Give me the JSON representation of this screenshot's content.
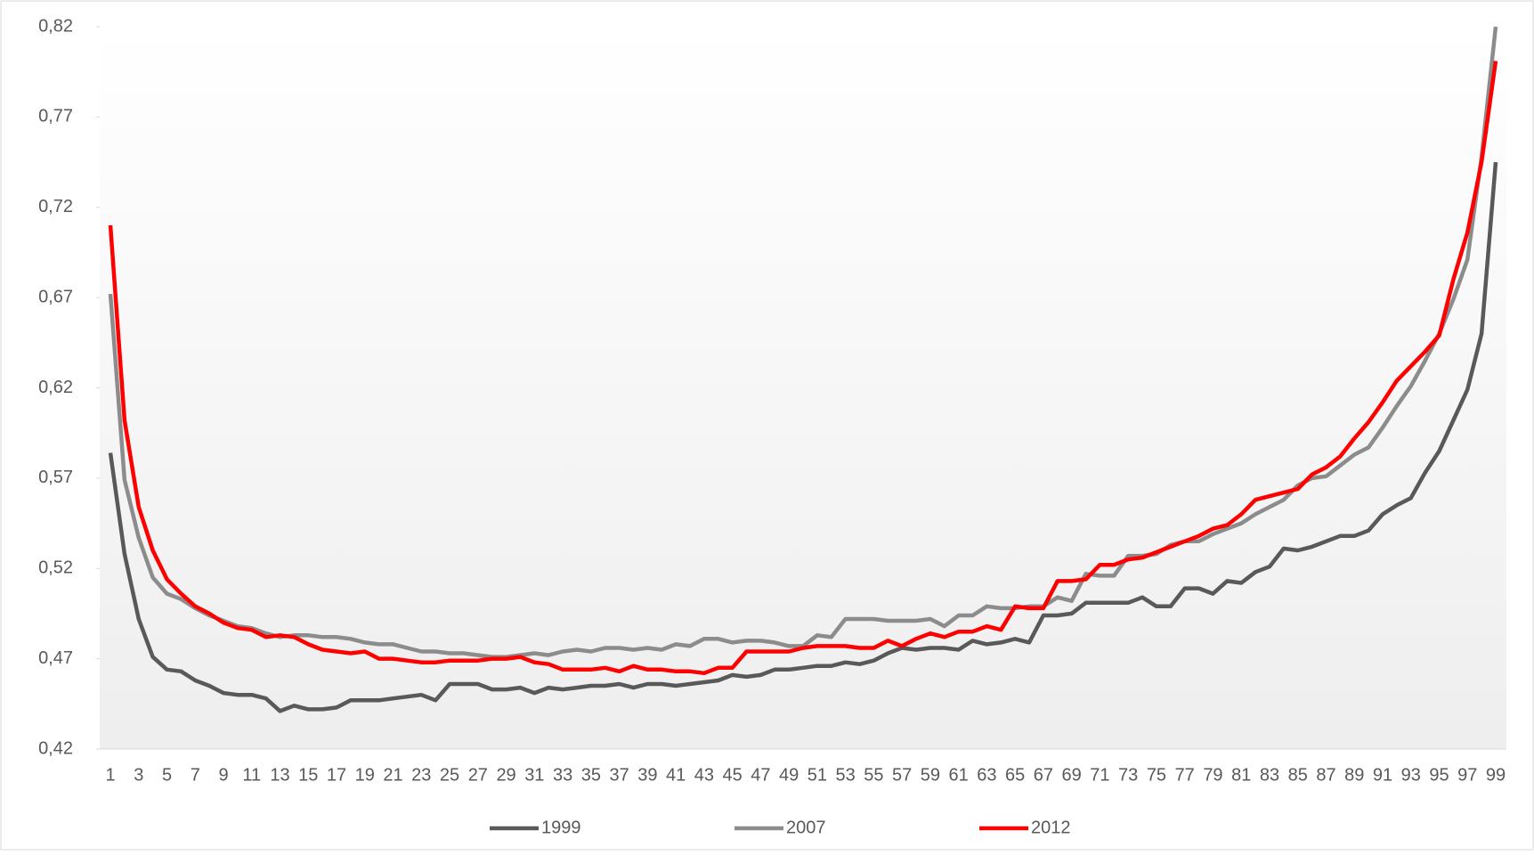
{
  "chart_data": {
    "type": "line",
    "categories": [
      1,
      null,
      3,
      null,
      5,
      null,
      7,
      null,
      9,
      null,
      11,
      null,
      13,
      null,
      15,
      null,
      17,
      null,
      19,
      null,
      21,
      null,
      23,
      null,
      25,
      null,
      27,
      null,
      29,
      null,
      31,
      null,
      33,
      null,
      35,
      null,
      37,
      null,
      39,
      null,
      41,
      null,
      43,
      null,
      45,
      null,
      47,
      null,
      49,
      null,
      51,
      null,
      53,
      null,
      55,
      null,
      57,
      null,
      59,
      null,
      61,
      null,
      63,
      null,
      65,
      null,
      67,
      null,
      69,
      null,
      71,
      null,
      73,
      null,
      75,
      null,
      77,
      null,
      79,
      null,
      81,
      null,
      83,
      null,
      85,
      null,
      87,
      null,
      89,
      null,
      91,
      null,
      93,
      null,
      95,
      null,
      97,
      null,
      99
    ],
    "series": [
      {
        "name": "1999",
        "color": "#595959",
        "values": [
          0.584,
          0.528,
          0.492,
          0.471,
          0.464,
          0.463,
          0.458,
          0.455,
          0.451,
          0.45,
          0.45,
          0.448,
          0.441,
          0.444,
          0.442,
          0.442,
          0.443,
          0.447,
          0.447,
          0.447,
          0.448,
          0.449,
          0.45,
          0.447,
          0.456,
          0.456,
          0.456,
          0.453,
          0.453,
          0.454,
          0.451,
          0.454,
          0.453,
          0.454,
          0.455,
          0.455,
          0.456,
          0.454,
          0.456,
          0.456,
          0.455,
          0.456,
          0.457,
          0.458,
          0.461,
          0.46,
          0.461,
          0.464,
          0.464,
          0.465,
          0.466,
          0.466,
          0.468,
          0.467,
          0.469,
          0.473,
          0.476,
          0.475,
          0.476,
          0.476,
          0.475,
          0.48,
          0.478,
          0.479,
          0.481,
          0.479,
          0.494,
          0.494,
          0.495,
          0.501,
          0.501,
          0.501,
          0.501,
          0.504,
          0.499,
          0.499,
          0.509,
          0.509,
          0.506,
          0.513,
          0.512,
          0.518,
          0.521,
          0.531,
          0.53,
          0.532,
          0.535,
          0.538,
          0.538,
          0.541,
          0.55,
          0.555,
          0.559,
          0.573,
          0.585,
          0.602,
          0.619,
          0.65,
          0.745
        ]
      },
      {
        "name": "2007",
        "color": "#8c8c8c",
        "values": [
          0.672,
          0.569,
          0.537,
          0.515,
          0.506,
          0.503,
          0.498,
          0.494,
          0.491,
          0.488,
          0.487,
          0.484,
          0.482,
          0.483,
          0.483,
          0.482,
          0.482,
          0.481,
          0.479,
          0.478,
          0.478,
          0.476,
          0.474,
          0.474,
          0.473,
          0.473,
          0.472,
          0.471,
          0.471,
          0.472,
          0.473,
          0.472,
          0.474,
          0.475,
          0.474,
          0.476,
          0.476,
          0.475,
          0.476,
          0.475,
          0.478,
          0.477,
          0.481,
          0.481,
          0.479,
          0.48,
          0.48,
          0.479,
          0.477,
          0.477,
          0.483,
          0.482,
          0.492,
          0.492,
          0.492,
          0.491,
          0.491,
          0.491,
          0.492,
          0.488,
          0.494,
          0.494,
          0.499,
          0.498,
          0.498,
          0.499,
          0.499,
          0.504,
          0.502,
          0.517,
          0.516,
          0.516,
          0.527,
          0.527,
          0.528,
          0.533,
          0.535,
          0.535,
          0.539,
          0.542,
          0.545,
          0.55,
          0.554,
          0.558,
          0.566,
          0.57,
          0.571,
          0.577,
          0.583,
          0.587,
          0.598,
          0.61,
          0.621,
          0.635,
          0.65,
          0.669,
          0.691,
          0.748,
          0.82
        ]
      },
      {
        "name": "2012",
        "color": "#ff0000",
        "values": [
          0.71,
          0.602,
          0.554,
          0.53,
          0.514,
          0.506,
          0.499,
          0.495,
          0.49,
          0.487,
          0.486,
          0.482,
          0.483,
          0.482,
          0.478,
          0.475,
          0.474,
          0.473,
          0.474,
          0.47,
          0.47,
          0.469,
          0.468,
          0.468,
          0.469,
          0.469,
          0.469,
          0.47,
          0.47,
          0.471,
          0.468,
          0.467,
          0.464,
          0.464,
          0.464,
          0.465,
          0.463,
          0.466,
          0.464,
          0.464,
          0.463,
          0.463,
          0.462,
          0.465,
          0.465,
          0.474,
          0.474,
          0.474,
          0.474,
          0.476,
          0.477,
          0.477,
          0.477,
          0.476,
          0.476,
          0.48,
          0.477,
          0.481,
          0.484,
          0.482,
          0.485,
          0.485,
          0.488,
          0.486,
          0.499,
          0.498,
          0.498,
          0.513,
          0.513,
          0.514,
          0.522,
          0.522,
          0.525,
          0.526,
          0.529,
          0.532,
          0.535,
          0.538,
          0.542,
          0.544,
          0.55,
          0.558,
          0.56,
          0.562,
          0.564,
          0.572,
          0.576,
          0.582,
          0.592,
          0.601,
          0.612,
          0.624,
          0.632,
          0.64,
          0.649,
          0.68,
          0.706,
          0.745,
          0.801
        ]
      }
    ],
    "ylim": [
      0.42,
      0.82
    ],
    "yticks": [
      {
        "value": 0.42,
        "label": "0,42"
      },
      {
        "value": 0.47,
        "label": "0,47"
      },
      {
        "value": 0.52,
        "label": "0,52"
      },
      {
        "value": 0.57,
        "label": "0,57"
      },
      {
        "value": 0.62,
        "label": "0,62"
      },
      {
        "value": 0.67,
        "label": "0,67"
      },
      {
        "value": 0.72,
        "label": "0,72"
      },
      {
        "value": 0.77,
        "label": "0,77"
      },
      {
        "value": 0.82,
        "label": "0,82"
      }
    ],
    "legend": "bottom"
  }
}
